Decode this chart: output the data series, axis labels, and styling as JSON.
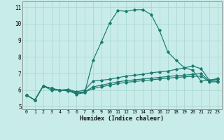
{
  "xlabel": "Humidex (Indice chaleur)",
  "background_color": "#c8ecea",
  "grid_color": "#a8d4d0",
  "line_color": "#1a7a6e",
  "xlim_min": -0.5,
  "xlim_max": 23.5,
  "ylim_min": 4.85,
  "ylim_max": 11.35,
  "yticks": [
    5,
    6,
    7,
    8,
    9,
    10,
    11
  ],
  "xticks": [
    0,
    1,
    2,
    3,
    4,
    5,
    6,
    7,
    8,
    9,
    10,
    11,
    12,
    13,
    14,
    15,
    16,
    17,
    18,
    19,
    20,
    21,
    22,
    23
  ],
  "series": [
    [
      5.7,
      5.4,
      6.25,
      6.0,
      6.0,
      6.0,
      5.75,
      5.85,
      7.8,
      8.9,
      10.05,
      10.8,
      10.75,
      10.85,
      10.85,
      10.55,
      9.6,
      8.3,
      7.8,
      7.35,
      7.2,
      6.55,
      6.6,
      6.7
    ],
    [
      5.7,
      5.4,
      6.25,
      6.1,
      6.0,
      6.05,
      5.9,
      6.0,
      6.55,
      6.6,
      6.65,
      6.75,
      6.85,
      6.9,
      6.95,
      7.05,
      7.1,
      7.15,
      7.25,
      7.35,
      7.45,
      7.3,
      6.6,
      6.65
    ],
    [
      5.7,
      5.4,
      6.25,
      6.1,
      6.0,
      6.0,
      5.85,
      5.9,
      6.2,
      6.3,
      6.4,
      6.5,
      6.57,
      6.62,
      6.67,
      6.72,
      6.77,
      6.82,
      6.87,
      6.9,
      6.95,
      7.0,
      6.55,
      6.55
    ],
    [
      5.7,
      5.4,
      6.25,
      6.1,
      6.0,
      5.95,
      5.8,
      5.88,
      6.1,
      6.2,
      6.3,
      6.4,
      6.47,
      6.52,
      6.57,
      6.62,
      6.67,
      6.72,
      6.77,
      6.8,
      6.83,
      6.85,
      6.5,
      6.5
    ]
  ]
}
